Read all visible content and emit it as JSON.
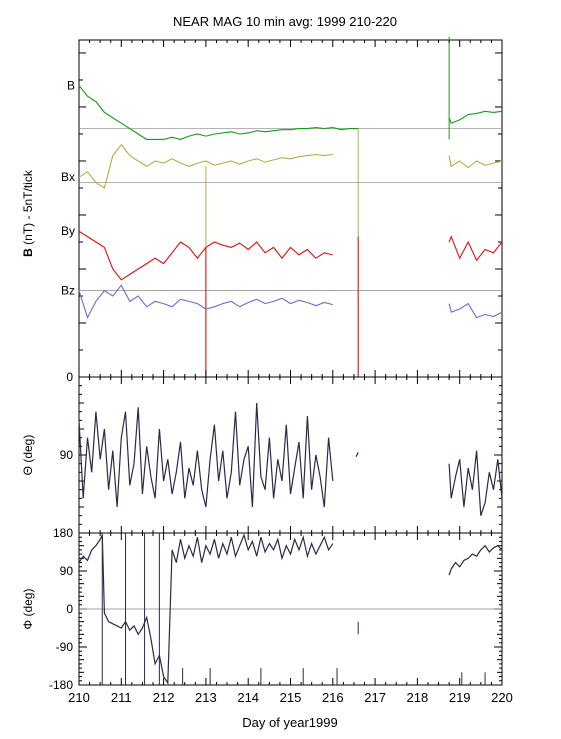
{
  "chart_data": [
    {
      "type": "line",
      "title": "NEAR MAG 10 min avg: 1999 210-220",
      "ylabel_bold": "B",
      "ylabel_rest": "(nT) - 5nT/tick",
      "yticklabels": [
        "0"
      ],
      "xlim": [
        210,
        220
      ],
      "series": [
        {
          "name": "B",
          "color": "#1a9a1a",
          "x": [
            210.0,
            210.2,
            210.4,
            210.6,
            210.8,
            211.0,
            211.2,
            211.4,
            211.6,
            211.8,
            212.0,
            212.2,
            212.4,
            212.6,
            212.8,
            213.0,
            213.2,
            213.4,
            213.6,
            213.8,
            214.0,
            214.2,
            214.4,
            214.6,
            214.8,
            215.0,
            215.2,
            215.4,
            215.6,
            215.8,
            216.0,
            216.2,
            216.4,
            216.6,
            218.75,
            218.8,
            219.0,
            219.2,
            219.4,
            219.6,
            219.8,
            220.0
          ],
          "y": [
            27.0,
            26.0,
            25.5,
            24.5,
            24.0,
            23.5,
            23.0,
            22.5,
            22.0,
            22.0,
            22.0,
            22.2,
            22.0,
            22.3,
            22.5,
            22.3,
            22.5,
            22.6,
            22.7,
            22.5,
            22.6,
            22.8,
            22.7,
            22.8,
            22.9,
            22.9,
            23.0,
            23.0,
            23.1,
            23.0,
            23.1,
            22.9,
            23.0,
            23.0,
            24.0,
            23.5,
            23.8,
            24.3,
            24.4,
            24.6,
            24.5,
            24.6
          ]
        },
        {
          "name": "Bx",
          "color": "#b8ab4a",
          "x": [
            210.0,
            210.2,
            210.4,
            210.6,
            210.8,
            211.0,
            211.2,
            211.4,
            211.6,
            211.8,
            212.0,
            212.2,
            212.4,
            212.6,
            212.8,
            213.0,
            213.2,
            213.4,
            213.6,
            213.8,
            214.0,
            214.2,
            214.4,
            214.6,
            214.8,
            215.0,
            215.2,
            215.4,
            215.6,
            215.8,
            216.0,
            218.75,
            218.8,
            219.0,
            219.2,
            219.4,
            219.6,
            219.8,
            220.0
          ],
          "y": [
            18.5,
            19.0,
            18.0,
            17.5,
            20.5,
            21.5,
            20.5,
            20.0,
            19.5,
            20.0,
            19.8,
            20.2,
            19.8,
            19.5,
            19.8,
            20.0,
            19.6,
            19.8,
            20.0,
            19.7,
            20.0,
            20.2,
            19.9,
            20.1,
            20.3,
            20.2,
            20.4,
            20.5,
            20.6,
            20.5,
            20.6,
            20.5,
            19.5,
            20.0,
            19.4,
            20.0,
            19.6,
            19.8,
            20.0
          ]
        },
        {
          "name": "By",
          "color": "#e01010",
          "x": [
            210.0,
            210.2,
            210.4,
            210.6,
            210.8,
            211.0,
            211.2,
            211.4,
            211.6,
            211.8,
            212.0,
            212.2,
            212.4,
            212.6,
            212.8,
            213.0,
            213.2,
            213.4,
            213.6,
            213.8,
            214.0,
            214.2,
            214.4,
            214.6,
            214.8,
            215.0,
            215.2,
            215.4,
            215.6,
            215.8,
            216.0,
            218.75,
            218.8,
            219.0,
            219.2,
            219.4,
            219.6,
            219.8,
            220.0
          ],
          "y": [
            13.5,
            13.0,
            12.5,
            12.0,
            10.0,
            9.0,
            9.5,
            10.0,
            10.5,
            11.0,
            10.5,
            11.5,
            12.5,
            12.0,
            11.0,
            12.0,
            12.5,
            12.2,
            12.0,
            12.4,
            11.8,
            12.5,
            11.5,
            12.0,
            11.0,
            12.0,
            11.3,
            11.8,
            11.0,
            11.5,
            11.3,
            12.5,
            13.0,
            11.0,
            12.5,
            10.8,
            11.8,
            11.5,
            12.5
          ]
        },
        {
          "name": "Bz",
          "color": "#6a6ad8",
          "x": [
            210.0,
            210.2,
            210.4,
            210.6,
            210.8,
            211.0,
            211.2,
            211.4,
            211.6,
            211.8,
            212.0,
            212.2,
            212.4,
            212.6,
            212.8,
            213.0,
            213.2,
            213.4,
            213.6,
            213.8,
            214.0,
            214.2,
            214.4,
            214.6,
            214.8,
            215.0,
            215.2,
            215.4,
            215.6,
            215.8,
            216.0,
            218.75,
            218.8,
            219.0,
            219.2,
            219.4,
            219.6,
            219.8,
            220.0
          ],
          "y": [
            8.0,
            5.5,
            7.0,
            8.0,
            7.5,
            8.5,
            7.0,
            7.5,
            6.5,
            7.0,
            6.8,
            6.5,
            7.2,
            7.0,
            6.8,
            6.3,
            6.5,
            6.8,
            7.0,
            6.5,
            6.9,
            7.2,
            6.8,
            7.0,
            7.3,
            6.8,
            7.1,
            6.9,
            6.6,
            6.9,
            6.7,
            6.8,
            6.0,
            6.3,
            6.8,
            5.5,
            5.8,
            5.6,
            6.0
          ]
        }
      ],
      "spikes": [
        {
          "x": 213.0,
          "color": "#b8ab4a",
          "y_from": 0,
          "y_to": 19.5
        },
        {
          "x": 213.0,
          "color": "#e01010",
          "y_from": 0,
          "y_to": 12
        },
        {
          "x": 216.6,
          "color": "#b8ab4a",
          "y_from": 0,
          "y_to": 23
        },
        {
          "x": 216.6,
          "color": "#e01010",
          "y_from": 0,
          "y_to": 13
        },
        {
          "x": 218.75,
          "color": "#1a9a1a",
          "y_from": 22,
          "y_to": 31.5
        }
      ],
      "ylim": [
        0,
        31.2
      ],
      "baselines": [
        23,
        18,
        8
      ]
    },
    {
      "type": "line",
      "ylabel": "Θ (deg)",
      "yticklabels": [
        "90"
      ],
      "yticks": [
        90
      ],
      "ylim": [
        0,
        180
      ],
      "inverted": true,
      "xlim": [
        210,
        220
      ],
      "series": [
        {
          "color": "#2a2a4a",
          "x": [
            210.0,
            210.1,
            210.2,
            210.3,
            210.4,
            210.5,
            210.6,
            210.7,
            210.8,
            210.9,
            211.0,
            211.1,
            211.2,
            211.3,
            211.4,
            211.5,
            211.6,
            211.7,
            211.8,
            211.9,
            212.0,
            212.1,
            212.2,
            212.3,
            212.4,
            212.5,
            212.6,
            212.7,
            212.8,
            212.9,
            213.0,
            213.1,
            213.2,
            213.3,
            213.4,
            213.5,
            213.6,
            213.7,
            213.8,
            213.9,
            214.0,
            214.1,
            214.2,
            214.3,
            214.4,
            214.5,
            214.6,
            214.7,
            214.8,
            214.9,
            215.0,
            215.1,
            215.2,
            215.3,
            215.4,
            215.5,
            215.6,
            215.7,
            215.8,
            215.9,
            216.0,
            216.55,
            216.6,
            218.75,
            218.8,
            218.9,
            219.0,
            219.1,
            219.2,
            219.3,
            219.4,
            219.5,
            219.6,
            219.7,
            219.8,
            219.9,
            220.0
          ],
          "y": [
            50,
            140,
            70,
            110,
            40,
            95,
            60,
            130,
            85,
            150,
            70,
            40,
            125,
            100,
            35,
            135,
            80,
            115,
            140,
            60,
            120,
            95,
            135,
            110,
            75,
            140,
            105,
            125,
            85,
            130,
            150,
            95,
            55,
            120,
            85,
            140,
            110,
            40,
            125,
            95,
            80,
            150,
            30,
            115,
            130,
            70,
            140,
            95,
            120,
            55,
            135,
            105,
            75,
            140,
            45,
            130,
            90,
            115,
            150,
            70,
            120,
            92,
            87,
            100,
            140,
            115,
            95,
            150,
            105,
            130,
            85,
            160,
            145,
            110,
            130,
            95,
            140
          ]
        }
      ]
    },
    {
      "type": "line",
      "ylabel": "Φ (deg)",
      "yticklabels": [
        "180",
        "90",
        "0",
        "-90",
        "-180"
      ],
      "yticks": [
        180,
        90,
        0,
        -90,
        -180
      ],
      "ylim": [
        -180,
        180
      ],
      "xlim": [
        210,
        220
      ],
      "xlabel": "Day of year1999",
      "xticklabels": [
        "210",
        "211",
        "212",
        "213",
        "214",
        "215",
        "216",
        "217",
        "218",
        "219",
        "220"
      ],
      "xticks": [
        210,
        211,
        212,
        213,
        214,
        215,
        216,
        217,
        218,
        219,
        220
      ],
      "series": [
        {
          "color": "#2a2a4a",
          "x": [
            210.0,
            210.1,
            210.2,
            210.3,
            210.4,
            210.5,
            210.55,
            210.6,
            210.7,
            210.8,
            210.9,
            211.0,
            211.1,
            211.2,
            211.3,
            211.4,
            211.5,
            211.6,
            211.7,
            211.8,
            211.9,
            212.0,
            212.1,
            212.2,
            212.3,
            212.4,
            212.5,
            212.6,
            212.7,
            212.8,
            212.9,
            213.0,
            213.1,
            213.2,
            213.3,
            213.4,
            213.5,
            213.6,
            213.7,
            213.8,
            213.9,
            214.0,
            214.1,
            214.2,
            214.3,
            214.4,
            214.5,
            214.6,
            214.7,
            214.8,
            214.9,
            215.0,
            215.1,
            215.2,
            215.3,
            215.4,
            215.5,
            215.6,
            215.7,
            215.8,
            215.9,
            216.0
          ],
          "y": [
            110,
            125,
            115,
            140,
            150,
            165,
            175,
            -10,
            -30,
            -35,
            -40,
            -45,
            -30,
            -50,
            -40,
            -60,
            -45,
            -20,
            -70,
            -130,
            -110,
            -160,
            -175,
            140,
            110,
            165,
            120,
            150,
            125,
            170,
            110,
            150,
            130,
            165,
            120,
            155,
            130,
            170,
            125,
            150,
            175,
            140,
            160,
            125,
            170,
            135,
            155,
            140,
            165,
            120,
            150,
            130,
            165,
            140,
            170,
            125,
            155,
            130,
            150,
            170,
            140,
            155
          ]
        },
        {
          "color": "#2a2a4a",
          "x": [
            218.75,
            218.8,
            218.9,
            219.0,
            219.1,
            219.2,
            219.3,
            219.4,
            219.5,
            219.6,
            219.7,
            219.8,
            219.9,
            220.0
          ],
          "y": [
            80,
            95,
            110,
            100,
            115,
            120,
            130,
            125,
            140,
            150,
            135,
            145,
            150,
            140
          ]
        }
      ],
      "gaps_lines": [
        {
          "x": 210.55,
          "y_from": -180,
          "y_to": 180
        },
        {
          "x": 211.1,
          "y_from": -180,
          "y_to": 180
        },
        {
          "x": 211.55,
          "y_from": -180,
          "y_to": 180
        },
        {
          "x": 211.9,
          "y_from": -180,
          "y_to": 180
        },
        {
          "x": 216.6,
          "y_from": -30,
          "y_to": -60
        },
        {
          "x": 212.45,
          "y_from": -180,
          "y_to": -140
        },
        {
          "x": 213.1,
          "y_from": -180,
          "y_to": -140
        },
        {
          "x": 214.3,
          "y_from": -180,
          "y_to": -140
        },
        {
          "x": 215.3,
          "y_from": -180,
          "y_to": -140
        },
        {
          "x": 216.1,
          "y_from": -180,
          "y_to": -140
        },
        {
          "x": 219.05,
          "y_from": -180,
          "y_to": -150
        },
        {
          "x": 219.6,
          "y_from": -180,
          "y_to": -150
        }
      ]
    }
  ]
}
